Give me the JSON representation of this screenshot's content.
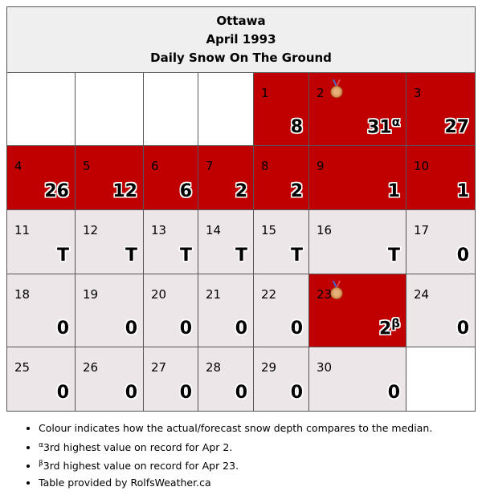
{
  "header": {
    "city": "Ottawa",
    "month": "April 1993",
    "metric": "Daily Snow On The Ground"
  },
  "colors": {
    "above_median": "#c00000",
    "near_median": "#ece6e8",
    "empty": "#ffffff"
  },
  "days": [
    {
      "day": "1",
      "value": "8",
      "sup": "",
      "medal": false,
      "color": "red"
    },
    {
      "day": "2",
      "value": "31",
      "sup": "α",
      "medal": true,
      "color": "red"
    },
    {
      "day": "3",
      "value": "27",
      "sup": "",
      "medal": false,
      "color": "red"
    },
    {
      "day": "4",
      "value": "26",
      "sup": "",
      "medal": false,
      "color": "red"
    },
    {
      "day": "5",
      "value": "12",
      "sup": "",
      "medal": false,
      "color": "red"
    },
    {
      "day": "6",
      "value": "6",
      "sup": "",
      "medal": false,
      "color": "red"
    },
    {
      "day": "7",
      "value": "2",
      "sup": "",
      "medal": false,
      "color": "red"
    },
    {
      "day": "8",
      "value": "2",
      "sup": "",
      "medal": false,
      "color": "red"
    },
    {
      "day": "9",
      "value": "1",
      "sup": "",
      "medal": false,
      "color": "red"
    },
    {
      "day": "10",
      "value": "1",
      "sup": "",
      "medal": false,
      "color": "red"
    },
    {
      "day": "11",
      "value": "T",
      "sup": "",
      "medal": false,
      "color": "grey"
    },
    {
      "day": "12",
      "value": "T",
      "sup": "",
      "medal": false,
      "color": "grey"
    },
    {
      "day": "13",
      "value": "T",
      "sup": "",
      "medal": false,
      "color": "grey"
    },
    {
      "day": "14",
      "value": "T",
      "sup": "",
      "medal": false,
      "color": "grey"
    },
    {
      "day": "15",
      "value": "T",
      "sup": "",
      "medal": false,
      "color": "grey"
    },
    {
      "day": "16",
      "value": "T",
      "sup": "",
      "medal": false,
      "color": "grey"
    },
    {
      "day": "17",
      "value": "0",
      "sup": "",
      "medal": false,
      "color": "grey"
    },
    {
      "day": "18",
      "value": "0",
      "sup": "",
      "medal": false,
      "color": "grey"
    },
    {
      "day": "19",
      "value": "0",
      "sup": "",
      "medal": false,
      "color": "grey"
    },
    {
      "day": "20",
      "value": "0",
      "sup": "",
      "medal": false,
      "color": "grey"
    },
    {
      "day": "21",
      "value": "0",
      "sup": "",
      "medal": false,
      "color": "grey"
    },
    {
      "day": "22",
      "value": "0",
      "sup": "",
      "medal": false,
      "color": "grey"
    },
    {
      "day": "23",
      "value": "2",
      "sup": "β",
      "medal": true,
      "color": "red"
    },
    {
      "day": "24",
      "value": "0",
      "sup": "",
      "medal": false,
      "color": "grey"
    },
    {
      "day": "25",
      "value": "0",
      "sup": "",
      "medal": false,
      "color": "grey"
    },
    {
      "day": "26",
      "value": "0",
      "sup": "",
      "medal": false,
      "color": "grey"
    },
    {
      "day": "27",
      "value": "0",
      "sup": "",
      "medal": false,
      "color": "grey"
    },
    {
      "day": "28",
      "value": "0",
      "sup": "",
      "medal": false,
      "color": "grey"
    },
    {
      "day": "29",
      "value": "0",
      "sup": "",
      "medal": false,
      "color": "grey"
    },
    {
      "day": "30",
      "value": "0",
      "sup": "",
      "medal": false,
      "color": "grey"
    }
  ],
  "notes": {
    "colour": "Colour indicates how the actual/forecast snow depth compares to the median.",
    "alpha_mark": "α",
    "alpha": "3rd highest value on record for Apr 2.",
    "beta_mark": "β",
    "beta": "3rd highest value on record for Apr 23.",
    "source": "Table provided by RolfsWeather.ca"
  }
}
